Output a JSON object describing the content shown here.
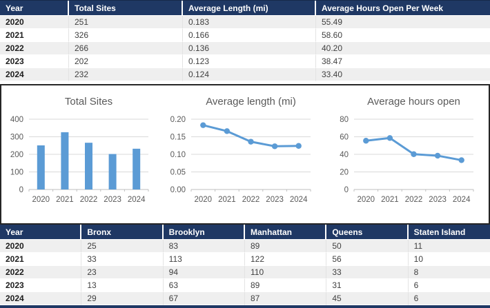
{
  "summary_table": {
    "columns": [
      "Year",
      "Total Sites",
      "Average Length (mi)",
      "Average Hours Open Per Week"
    ],
    "rows": [
      [
        "2020",
        "251",
        "0.183",
        "55.49"
      ],
      [
        "2021",
        "326",
        "0.166",
        "58.60"
      ],
      [
        "2022",
        "266",
        "0.136",
        "40.20"
      ],
      [
        "2023",
        "202",
        "0.123",
        "38.47"
      ],
      [
        "2024",
        "232",
        "0.124",
        "33.40"
      ]
    ]
  },
  "borough_table": {
    "columns": [
      "Year",
      "Bronx",
      "Brooklyn",
      "Manhattan",
      "Queens",
      "Staten Island"
    ],
    "rows": [
      [
        "2020",
        "25",
        "83",
        "89",
        "50",
        "11"
      ],
      [
        "2021",
        "33",
        "113",
        "122",
        "56",
        "10"
      ],
      [
        "2022",
        "23",
        "94",
        "110",
        "33",
        "8"
      ],
      [
        "2023",
        "13",
        "63",
        "89",
        "31",
        "6"
      ],
      [
        "2024",
        "29",
        "67",
        "87",
        "45",
        "6"
      ]
    ]
  },
  "chart_data": [
    {
      "type": "bar",
      "title": "Total Sites",
      "categories": [
        "2020",
        "2021",
        "2022",
        "2023",
        "2024"
      ],
      "values": [
        251,
        326,
        266,
        202,
        232
      ],
      "xlabel": "",
      "ylabel": "",
      "ylim": [
        0,
        400
      ],
      "yticks": [
        {
          "value": 0,
          "label": "0"
        },
        {
          "value": 100,
          "label": "100"
        },
        {
          "value": 200,
          "label": "200"
        },
        {
          "value": 300,
          "label": "300"
        },
        {
          "value": 400,
          "label": "400"
        }
      ],
      "grid": true,
      "legend": "none"
    },
    {
      "type": "line",
      "title": "Average length (mi)",
      "categories": [
        "2020",
        "2021",
        "2022",
        "2023",
        "2024"
      ],
      "values": [
        0.183,
        0.166,
        0.136,
        0.123,
        0.124
      ],
      "xlabel": "",
      "ylabel": "",
      "ylim": [
        0,
        0.2
      ],
      "yticks": [
        {
          "value": 0.0,
          "label": "0.00"
        },
        {
          "value": 0.05,
          "label": "0.05"
        },
        {
          "value": 0.1,
          "label": "0.10"
        },
        {
          "value": 0.15,
          "label": "0.15"
        },
        {
          "value": 0.2,
          "label": "0.20"
        }
      ],
      "grid": true,
      "legend": "none"
    },
    {
      "type": "line",
      "title": "Average hours open",
      "categories": [
        "2020",
        "2021",
        "2022",
        "2023",
        "2024"
      ],
      "values": [
        55.49,
        58.6,
        40.2,
        38.47,
        33.4
      ],
      "xlabel": "",
      "ylabel": "",
      "ylim": [
        0,
        80
      ],
      "yticks": [
        {
          "value": 0,
          "label": "0"
        },
        {
          "value": 20,
          "label": "20"
        },
        {
          "value": 40,
          "label": "40"
        },
        {
          "value": 60,
          "label": "60"
        },
        {
          "value": 80,
          "label": "80"
        }
      ],
      "grid": true,
      "legend": "none"
    }
  ],
  "colors": {
    "header_bg": "#1F3864",
    "accent_blue": "#5B9BD5",
    "title_gray": "#595959",
    "axis_label_gray": "#595959",
    "gridline": "#D9D9D9",
    "axis_line": "#BFBFBF",
    "row_stripe": "#EFEFEF"
  }
}
